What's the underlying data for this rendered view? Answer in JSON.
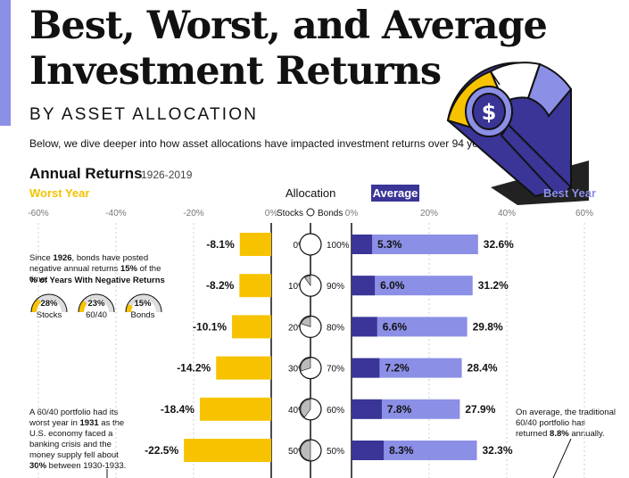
{
  "header": {
    "title_line1": "Best, Worst, and Average",
    "title_line2": "Investment Returns",
    "subtitle": "BY ASSET ALLOCATION",
    "intro": "Below, we dive deeper into how asset allocations have impacted investment returns over 94 years."
  },
  "section": {
    "title": "Annual Returns",
    "range": "1926-2019",
    "worst_label": "Worst Year",
    "allocation_label": "Allocation",
    "average_label": "Average",
    "best_label": "Best Year",
    "stocks_label": "Stocks",
    "bonds_label": "Bonds"
  },
  "left_note": {
    "text_a": "Since ",
    "year": "1926",
    "text_b": ", bonds have posted negative annual returns ",
    "pct": "15%",
    "text_c": " of the time.",
    "gauge_title": "% of Years With Negative Returns",
    "gauges": [
      {
        "value": "28%",
        "label": "Stocks",
        "fraction": 0.28
      },
      {
        "value": "23%",
        "label": "60/40",
        "fraction": 0.23
      },
      {
        "value": "15%",
        "label": "Bonds",
        "fraction": 0.15
      }
    ]
  },
  "left_note2": {
    "line1": "A 60/40 portfolio had its",
    "line2a": "worst year in ",
    "year": "1931",
    "line2b": " as the",
    "line3": "U.S. economy faced a",
    "line4": "banking crisis and the",
    "line5": "money supply fell about",
    "pct": "30%",
    "line6b": " between 1930-1933."
  },
  "right_note": {
    "line1": "On average, the traditional",
    "line2": "60/40 portfolio has",
    "line3a": "returned ",
    "pct": "8.8%",
    "line3b": " annually."
  },
  "chart_data": {
    "type": "bar",
    "left_axis": {
      "ticks": [
        "-60%",
        "-40%",
        "-20%",
        "0%"
      ],
      "range": [
        -60,
        0
      ]
    },
    "right_axis": {
      "ticks": [
        "0%",
        "20%",
        "40%",
        "60%"
      ],
      "range": [
        0,
        60
      ]
    },
    "allocations": [
      {
        "stocks": "0%",
        "bonds": "100%",
        "stock_share": 0.0
      },
      {
        "stocks": "10%",
        "bonds": "90%",
        "stock_share": 0.1
      },
      {
        "stocks": "20%",
        "bonds": "80%",
        "stock_share": 0.2
      },
      {
        "stocks": "30%",
        "bonds": "70%",
        "stock_share": 0.3
      },
      {
        "stocks": "40%",
        "bonds": "60%",
        "stock_share": 0.4
      },
      {
        "stocks": "50%",
        "bonds": "50%",
        "stock_share": 0.5
      }
    ],
    "series": [
      {
        "name": "Worst Year",
        "values": [
          -8.1,
          -8.2,
          -10.1,
          -14.2,
          -18.4,
          -22.5
        ],
        "labels": [
          "-8.1%",
          "-8.2%",
          "-10.1%",
          "-14.2%",
          "-18.4%",
          "-22.5%"
        ]
      },
      {
        "name": "Average",
        "values": [
          5.3,
          6.0,
          6.6,
          7.2,
          7.8,
          8.3
        ],
        "labels": [
          "5.3%",
          "6.0%",
          "6.6%",
          "7.2%",
          "7.8%",
          "8.3%"
        ]
      },
      {
        "name": "Best Year",
        "values": [
          32.6,
          31.2,
          29.8,
          28.4,
          27.9,
          32.3
        ],
        "labels": [
          "32.6%",
          "31.2%",
          "29.8%",
          "28.4%",
          "27.9%",
          "32.3%"
        ]
      }
    ],
    "colors": {
      "worst": "#f7c300",
      "average": "#3a3596",
      "best": "#8b8fe6",
      "accent": "#8b8fe6"
    }
  }
}
